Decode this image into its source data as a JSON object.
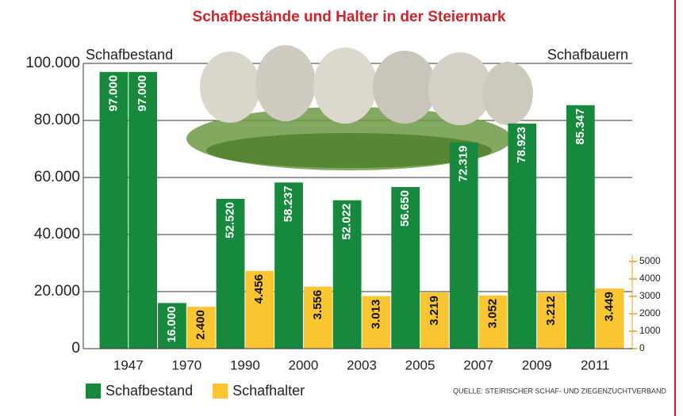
{
  "chart_data": {
    "type": "bar",
    "title": "Schafbestände und Halter in der Steiermark",
    "y_axis_label": "Schafbestand",
    "y2_axis_label": "Schafbauern",
    "source": "QUELLE: STEIRISCHER SCHAF- UND ZIEGENZUCHTVERBAND",
    "categories": [
      "1947",
      "1970",
      "1990",
      "2000",
      "2003",
      "2005",
      "2007",
      "2009",
      "2011"
    ],
    "series": [
      {
        "name": "Schafbestand",
        "color": "#17893d",
        "axis": "y",
        "label_color": "#ffffff",
        "values": [
          97000,
          16000,
          52520,
          58237,
          52022,
          56650,
          72319,
          78923,
          85347
        ],
        "value_labels": [
          "97.000",
          "16.000",
          "52.520",
          "58.237",
          "52.022",
          "56.650",
          "72.319",
          "78.923",
          "85.347"
        ]
      },
      {
        "name": "Schafhalter",
        "color": "#f9c631",
        "axis": "y2",
        "label_color": "#111111",
        "values": [
          null,
          2400,
          4456,
          3556,
          3013,
          3219,
          3052,
          3212,
          3449
        ],
        "value_labels": [
          null,
          "2.400",
          "4.456",
          "3.556",
          "3.013",
          "3.219",
          "3.052",
          "3.212",
          "3.449"
        ]
      },
      {
        "color": "#17893d",
        "axis": "y",
        "label_color": "#ffffff",
        "values": [
          97000,
          null,
          null,
          null,
          null,
          null,
          null,
          null,
          null
        ],
        "value_labels": [
          "97.000",
          null,
          null,
          null,
          null,
          null,
          null,
          null,
          null
        ]
      }
    ],
    "ylim": [
      0,
      100000
    ],
    "yticks": [
      0,
      {
        "value": 20000,
        "label": "20.000"
      },
      {
        "value": 40000,
        "label": "40.000"
      },
      {
        "value": 60000,
        "label": "60.000"
      },
      {
        "value": 80000,
        "label": "80.000"
      },
      {
        "value": 100000,
        "label": "100.000"
      }
    ],
    "y2lim": [
      0,
      16364
    ],
    "y2ticks": [
      0,
      1000,
      2000,
      3000,
      4000,
      5000
    ],
    "grid": true
  }
}
